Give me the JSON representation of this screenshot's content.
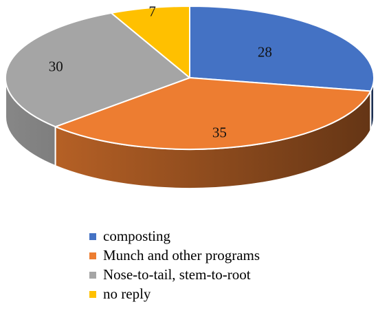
{
  "chart_data": {
    "type": "pie",
    "style": "3d",
    "slices": [
      {
        "label": "composting",
        "value": 28,
        "color": "#4472C4"
      },
      {
        "label": "Munch and other programs",
        "value": 35,
        "color": "#ED7D31"
      },
      {
        "label": "Nose-to-tail, stem-to-root",
        "value": 30,
        "color": "#A5A5A5"
      },
      {
        "label": "no reply",
        "value": 7,
        "color": "#FFC000"
      }
    ],
    "legend_position": "bottom"
  }
}
